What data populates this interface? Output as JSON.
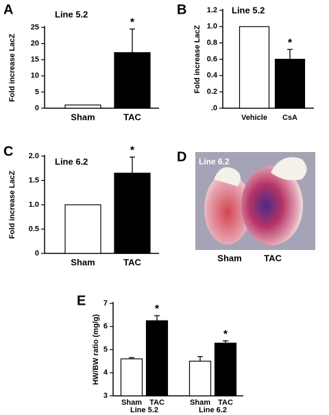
{
  "chart_data": [
    {
      "type": "bar",
      "panel": "A",
      "title": "Line 5.2",
      "y_label": "Fold increase  LacZ",
      "categories": [
        "Sham",
        "TAC"
      ],
      "values": [
        1.0,
        17.2
      ],
      "errors": [
        null,
        7.3
      ],
      "significance": [
        null,
        "*"
      ],
      "colors": [
        "#ffffff",
        "#000000"
      ],
      "ylim": [
        0,
        25
      ],
      "yticks": [
        0,
        5,
        10,
        15,
        20,
        25
      ]
    },
    {
      "type": "bar",
      "panel": "B",
      "title": "Line 5.2",
      "y_label": "Fold increase LacZ",
      "categories": [
        "Vehicle",
        "CsA"
      ],
      "values": [
        1.0,
        0.6
      ],
      "errors": [
        null,
        0.12
      ],
      "significance": [
        null,
        "*"
      ],
      "colors": [
        "#ffffff",
        "#000000"
      ],
      "ylim": [
        0,
        1.2
      ],
      "yticks": [
        {
          "value": 0,
          "label": ".0"
        },
        0.2,
        0.4,
        0.6,
        0.8,
        {
          "value": 1,
          "label": "1.0"
        },
        1.2
      ]
    },
    {
      "type": "bar",
      "panel": "C",
      "title": "Line 6.2",
      "y_label": "Fold increase  LacZ",
      "categories": [
        "Sham",
        "TAC"
      ],
      "values": [
        1.0,
        1.65
      ],
      "errors": [
        null,
        0.33
      ],
      "significance": [
        null,
        "*"
      ],
      "colors": [
        "#ffffff",
        "#000000"
      ],
      "ylim": [
        0,
        2.0
      ],
      "yticks": [
        0,
        0.5,
        {
          "value": 1,
          "label": "1.0"
        },
        1.5,
        {
          "value": 2,
          "label": "2.0"
        }
      ]
    },
    {
      "type": "grouped-bar",
      "panel": "E",
      "y_label": "HW/BW ratio (mg/g)",
      "categories": [
        "Line 5.2",
        "Line 6.2"
      ],
      "series": [
        {
          "name": "Sham",
          "color": "#ffffff",
          "values": [
            4.6,
            4.5
          ],
          "errors": [
            0.05,
            0.2
          ],
          "significance": [
            null,
            null
          ]
        },
        {
          "name": "TAC",
          "color": "#000000",
          "values": [
            6.25,
            5.28
          ],
          "errors": [
            0.22,
            0.1
          ],
          "significance": [
            "*",
            "*"
          ]
        }
      ],
      "ylim": [
        3,
        7
      ],
      "yticks": [
        3,
        4,
        5,
        6,
        7
      ]
    }
  ],
  "image_panel": {
    "panel": "D",
    "label": "Line 6.2",
    "captions": [
      "Sham",
      "TAC"
    ]
  }
}
